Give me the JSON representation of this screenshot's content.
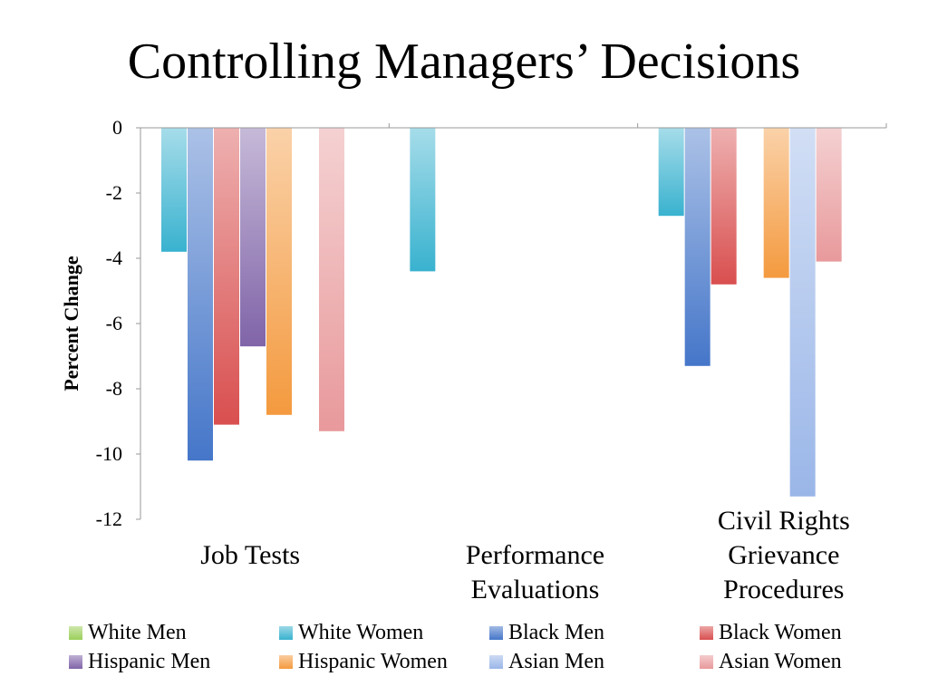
{
  "title": "Controlling Managers’ Decisions",
  "colors": {
    "White Men": "#9bcf5a",
    "White Women": "#39b2cf",
    "Black Men": "#4576c9",
    "Black Women": "#d94f4f",
    "Hispanic Men": "#8064a8",
    "Hispanic Women": "#f49a3f",
    "Asian Men": "#9ab6e8",
    "Asian Women": "#e8999b"
  },
  "chart_data": {
    "type": "bar",
    "title": "Controlling Managers’ Decisions",
    "xlabel": "",
    "ylabel": "Percent Change",
    "ylim": [
      -12,
      0
    ],
    "yticks": [
      0,
      -2,
      -4,
      -6,
      -8,
      -10,
      -12
    ],
    "grid": false,
    "legend_position": "bottom",
    "categories": [
      [
        "Job Tests"
      ],
      [
        "Performance",
        "Evaluations"
      ],
      [
        "Civil Rights",
        "Grievance",
        "Procedures"
      ]
    ],
    "series": [
      {
        "name": "White Men",
        "values": [
          null,
          null,
          null
        ]
      },
      {
        "name": "White Women",
        "values": [
          -3.8,
          -4.4,
          -2.7
        ]
      },
      {
        "name": "Black Men",
        "values": [
          -10.2,
          null,
          -7.3
        ]
      },
      {
        "name": "Black Women",
        "values": [
          -9.1,
          null,
          -4.8
        ]
      },
      {
        "name": "Hispanic Men",
        "values": [
          -6.7,
          null,
          null
        ]
      },
      {
        "name": "Hispanic Women",
        "values": [
          -8.8,
          null,
          -4.6
        ]
      },
      {
        "name": "Asian Men",
        "values": [
          null,
          null,
          -11.3
        ]
      },
      {
        "name": "Asian Women",
        "values": [
          -9.3,
          null,
          -4.1
        ]
      }
    ]
  },
  "legend": {
    "items": [
      "White Men",
      "White Women",
      "Black Men",
      "Black Women",
      "Hispanic Men",
      "Hispanic Women",
      "Asian Men",
      "Asian Women"
    ]
  }
}
